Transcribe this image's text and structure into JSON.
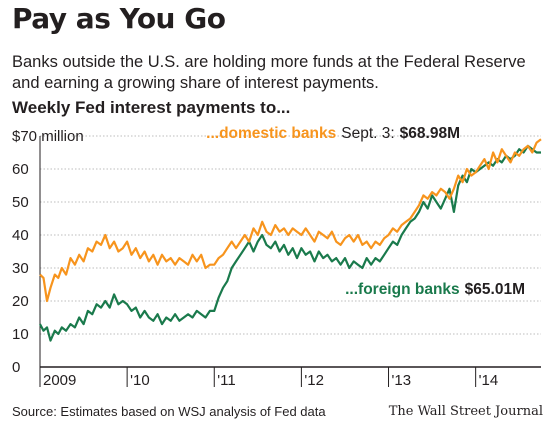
{
  "title": "Pay as You Go",
  "subtitle": "Banks outside the U.S. are holding more funds at the Federal Reserve and earning a growing share of interest payments.",
  "chart_heading": "Weekly Fed interest payments to...",
  "source": "Source: Estimates based on WSJ analysis of Fed data",
  "credit": "The Wall Street Journal",
  "colors": {
    "domestic": "#f7941d",
    "foreign": "#1a7a4c",
    "grid": "#bdbdbd",
    "axis": "#231f20"
  },
  "chart_data": {
    "type": "line",
    "title": "Weekly Fed interest payments to...",
    "xlabel": "",
    "ylabel": "",
    "ylim": [
      0,
      70
    ],
    "xlim": [
      2009.0,
      2014.75
    ],
    "y_ticks": [
      {
        "value": 70,
        "label": "$70 million"
      },
      {
        "value": 60,
        "label": "60"
      },
      {
        "value": 50,
        "label": "50"
      },
      {
        "value": 40,
        "label": "40"
      },
      {
        "value": 30,
        "label": "30"
      },
      {
        "value": 20,
        "label": "20"
      },
      {
        "value": 10,
        "label": "10"
      },
      {
        "value": 0,
        "label": "0"
      }
    ],
    "x_ticks": [
      {
        "value": 2009,
        "label": "2009"
      },
      {
        "value": 2010,
        "label": "'10"
      },
      {
        "value": 2011,
        "label": "'11"
      },
      {
        "value": 2012,
        "label": "'12"
      },
      {
        "value": 2013,
        "label": "'13"
      },
      {
        "value": 2014,
        "label": "'14"
      }
    ],
    "grid": "horizontal",
    "series": [
      {
        "name": "...domestic banks",
        "annotation_date": "Sept. 3:",
        "annotation_value": "$68.98M",
        "x": [
          2009.0,
          2009.04,
          2009.08,
          2009.12,
          2009.17,
          2009.21,
          2009.25,
          2009.3,
          2009.35,
          2009.4,
          2009.45,
          2009.5,
          2009.55,
          2009.6,
          2009.65,
          2009.7,
          2009.75,
          2009.8,
          2009.85,
          2009.9,
          2009.95,
          2010.0,
          2010.05,
          2010.1,
          2010.15,
          2010.2,
          2010.25,
          2010.3,
          2010.35,
          2010.4,
          2010.45,
          2010.5,
          2010.55,
          2010.6,
          2010.65,
          2010.7,
          2010.75,
          2010.8,
          2010.85,
          2010.9,
          2010.95,
          2011.0,
          2011.05,
          2011.1,
          2011.15,
          2011.2,
          2011.25,
          2011.3,
          2011.35,
          2011.4,
          2011.45,
          2011.5,
          2011.55,
          2011.6,
          2011.65,
          2011.7,
          2011.75,
          2011.8,
          2011.85,
          2011.9,
          2011.95,
          2012.0,
          2012.05,
          2012.1,
          2012.15,
          2012.2,
          2012.25,
          2012.3,
          2012.35,
          2012.4,
          2012.45,
          2012.5,
          2012.55,
          2012.6,
          2012.65,
          2012.7,
          2012.75,
          2012.8,
          2012.85,
          2012.9,
          2012.95,
          2013.0,
          2013.05,
          2013.1,
          2013.15,
          2013.2,
          2013.25,
          2013.3,
          2013.35,
          2013.4,
          2013.45,
          2013.5,
          2013.55,
          2013.6,
          2013.65,
          2013.7,
          2013.75,
          2013.8,
          2013.85,
          2013.9,
          2013.95,
          2014.0,
          2014.05,
          2014.1,
          2014.15,
          2014.2,
          2014.25,
          2014.3,
          2014.35,
          2014.4,
          2014.45,
          2014.5,
          2014.55,
          2014.6,
          2014.65,
          2014.7,
          2014.75
        ],
        "values": [
          28,
          27,
          20,
          24,
          28,
          27,
          30,
          28,
          33,
          31,
          34,
          32,
          36,
          35,
          38,
          37,
          40,
          36,
          38,
          35,
          36,
          38,
          34,
          36,
          33,
          35,
          32,
          34,
          31,
          34,
          32,
          33,
          31,
          33,
          32,
          31,
          34,
          32,
          34,
          30,
          31,
          31,
          33,
          34,
          36,
          38,
          36,
          38,
          40,
          38,
          42,
          40,
          44,
          41,
          40,
          43,
          41,
          42,
          40,
          42,
          41,
          40,
          42,
          40,
          38,
          41,
          40,
          39,
          41,
          38,
          37,
          39,
          40,
          38,
          40,
          37,
          38,
          36,
          38,
          37,
          39,
          40,
          42,
          41,
          43,
          44,
          45,
          47,
          49,
          52,
          51,
          53,
          52,
          54,
          53,
          51,
          54,
          58,
          56,
          60,
          58,
          59,
          61,
          63,
          60,
          65,
          62,
          66,
          64,
          62,
          65,
          64,
          66,
          67,
          65,
          68,
          69
        ]
      },
      {
        "name": "...foreign banks",
        "annotation_date": "",
        "annotation_value": "$65.01M",
        "x": [
          2009.0,
          2009.04,
          2009.08,
          2009.12,
          2009.17,
          2009.21,
          2009.25,
          2009.3,
          2009.35,
          2009.4,
          2009.45,
          2009.5,
          2009.55,
          2009.6,
          2009.65,
          2009.7,
          2009.75,
          2009.8,
          2009.85,
          2009.9,
          2009.95,
          2010.0,
          2010.05,
          2010.1,
          2010.15,
          2010.2,
          2010.25,
          2010.3,
          2010.35,
          2010.4,
          2010.45,
          2010.5,
          2010.55,
          2010.6,
          2010.65,
          2010.7,
          2010.75,
          2010.8,
          2010.85,
          2010.9,
          2010.95,
          2011.0,
          2011.05,
          2011.1,
          2011.15,
          2011.2,
          2011.25,
          2011.3,
          2011.35,
          2011.4,
          2011.45,
          2011.5,
          2011.55,
          2011.6,
          2011.65,
          2011.7,
          2011.75,
          2011.8,
          2011.85,
          2011.9,
          2011.95,
          2012.0,
          2012.05,
          2012.1,
          2012.15,
          2012.2,
          2012.25,
          2012.3,
          2012.35,
          2012.4,
          2012.45,
          2012.5,
          2012.55,
          2012.6,
          2012.65,
          2012.7,
          2012.75,
          2012.8,
          2012.85,
          2012.9,
          2012.95,
          2013.0,
          2013.05,
          2013.1,
          2013.15,
          2013.2,
          2013.25,
          2013.3,
          2013.35,
          2013.4,
          2013.45,
          2013.5,
          2013.55,
          2013.6,
          2013.65,
          2013.7,
          2013.75,
          2013.8,
          2013.85,
          2013.9,
          2013.95,
          2014.0,
          2014.05,
          2014.1,
          2014.15,
          2014.2,
          2014.25,
          2014.3,
          2014.35,
          2014.4,
          2014.45,
          2014.5,
          2014.55,
          2014.6,
          2014.65,
          2014.7,
          2014.75
        ],
        "values": [
          13,
          11,
          12,
          8,
          11,
          10,
          12,
          11,
          13,
          12,
          15,
          13,
          17,
          16,
          19,
          18,
          20,
          18,
          22,
          19,
          20,
          19,
          17,
          18,
          15,
          17,
          15,
          14,
          16,
          13,
          15,
          14,
          16,
          14,
          15,
          16,
          15,
          17,
          16,
          15,
          17,
          17,
          21,
          24,
          26,
          30,
          32,
          34,
          36,
          38,
          35,
          38,
          40,
          37,
          36,
          38,
          35,
          37,
          34,
          36,
          33,
          36,
          34,
          35,
          32,
          35,
          33,
          34,
          32,
          33,
          31,
          33,
          30,
          32,
          31,
          30,
          33,
          31,
          33,
          32,
          34,
          36,
          38,
          37,
          40,
          42,
          44,
          45,
          47,
          50,
          48,
          52,
          50,
          48,
          51,
          54,
          47,
          55,
          58,
          56,
          60,
          59,
          60,
          61,
          62,
          61,
          63,
          62,
          64,
          63,
          64,
          66,
          65,
          67,
          66,
          65,
          65
        ]
      }
    ]
  }
}
